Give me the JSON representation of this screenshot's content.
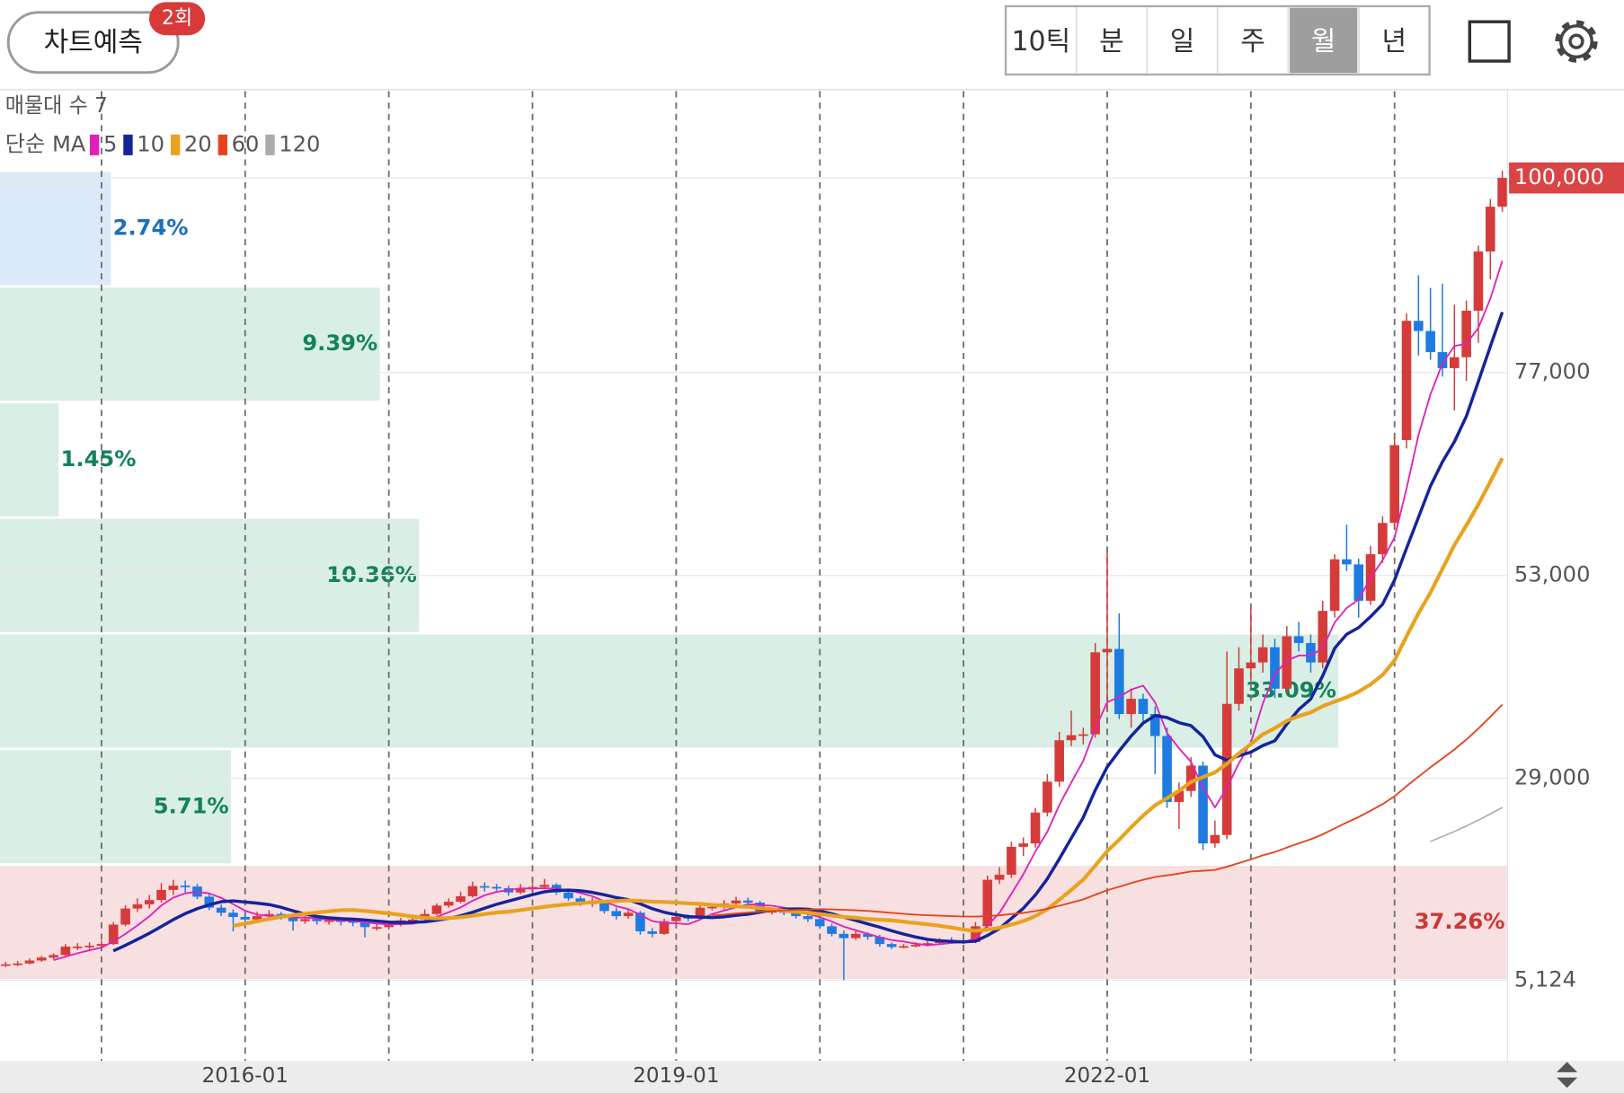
{
  "toolbar": {
    "predict_button": "차트예측",
    "badge": "2회",
    "periods": [
      "10틱",
      "분",
      "일",
      "주",
      "월",
      "년"
    ],
    "selected_period": 4
  },
  "chart_data": {
    "type": "candlestick",
    "categories": [
      "2014-05",
      "2014-06",
      "2014-07",
      "2014-08",
      "2014-09",
      "2014-10",
      "2014-11",
      "2014-12",
      "2015-01",
      "2015-02",
      "2015-03",
      "2015-04",
      "2015-05",
      "2015-06",
      "2015-07",
      "2015-08",
      "2015-09",
      "2015-10",
      "2015-11",
      "2015-12",
      "2016-01",
      "2016-02",
      "2016-03",
      "2016-04",
      "2016-05",
      "2016-06",
      "2016-07",
      "2016-08",
      "2016-09",
      "2016-10",
      "2016-11",
      "2016-12",
      "2017-01",
      "2017-02",
      "2017-03",
      "2017-04",
      "2017-05",
      "2017-06",
      "2017-07",
      "2017-08",
      "2017-09",
      "2017-10",
      "2017-11",
      "2017-12",
      "2018-01",
      "2018-02",
      "2018-03",
      "2018-04",
      "2018-05",
      "2018-06",
      "2018-07",
      "2018-08",
      "2018-09",
      "2018-10",
      "2018-11",
      "2018-12",
      "2019-01",
      "2019-02",
      "2019-03",
      "2019-04",
      "2019-05",
      "2019-06",
      "2019-07",
      "2019-08",
      "2019-09",
      "2019-10",
      "2019-11",
      "2019-12",
      "2020-01",
      "2020-02",
      "2020-03",
      "2020-04",
      "2020-05",
      "2020-06",
      "2020-07",
      "2020-08",
      "2020-09",
      "2020-10",
      "2020-11",
      "2020-12",
      "2021-01",
      "2021-02",
      "2021-03",
      "2021-04",
      "2021-05",
      "2021-06",
      "2021-07",
      "2021-08",
      "2021-09",
      "2021-10",
      "2021-11",
      "2021-12",
      "2022-01",
      "2022-02",
      "2022-03",
      "2022-04",
      "2022-05",
      "2022-06",
      "2022-07",
      "2022-08",
      "2022-09",
      "2022-10",
      "2022-11",
      "2022-12",
      "2023-01",
      "2023-02",
      "2023-03",
      "2023-04",
      "2023-05",
      "2023-06",
      "2023-07",
      "2023-08",
      "2023-09",
      "2023-10",
      "2023-11",
      "2023-12",
      "2024-01",
      "2024-02",
      "2024-03",
      "2024-04",
      "2024-05",
      "2024-06",
      "2024-07",
      "2024-08",
      "2024-09",
      "2024-10"
    ],
    "open": [
      6900,
      7000,
      7100,
      7450,
      7800,
      8100,
      9100,
      9100,
      9200,
      9400,
      11700,
      13600,
      14100,
      14600,
      15800,
      16300,
      16200,
      15000,
      13700,
      13100,
      12600,
      12300,
      12700,
      12950,
      12600,
      12100,
      12350,
      12100,
      12200,
      12100,
      12000,
      11400,
      11400,
      11700,
      12200,
      12300,
      12950,
      13950,
      14400,
      15050,
      16250,
      16150,
      16000,
      15500,
      16000,
      16150,
      16400,
      15500,
      14800,
      14300,
      14300,
      13300,
      12700,
      13100,
      10900,
      10600,
      12100,
      12600,
      12500,
      13700,
      13800,
      14200,
      14550,
      14300,
      13300,
      13300,
      13100,
      12700,
      12350,
      11500,
      10600,
      10100,
      10600,
      10250,
      9400,
      9050,
      9150,
      9300,
      9500,
      9900,
      9750,
      9650,
      11500,
      17000,
      17600,
      20900,
      21300,
      24950,
      28600,
      33500,
      34100,
      34200,
      43900,
      44300,
      36600,
      38400,
      36600,
      34000,
      26200,
      27500,
      30500,
      21300,
      22300,
      37800,
      42000,
      42700,
      44500,
      39600,
      45800,
      45000,
      42700,
      48800,
      54900,
      54300,
      50000,
      55500,
      59200,
      69000,
      83100,
      81900,
      79400,
      77500,
      78800,
      84300,
      91300,
      96600
    ],
    "high": [
      7300,
      7400,
      7700,
      8000,
      8300,
      9400,
      9500,
      9600,
      9800,
      12000,
      14000,
      14800,
      15200,
      16600,
      17000,
      16900,
      16500,
      15300,
      14100,
      13500,
      13100,
      13200,
      13400,
      13200,
      12900,
      12700,
      12600,
      12500,
      12400,
      12300,
      12200,
      11900,
      12000,
      12500,
      12800,
      13500,
      14200,
      14800,
      15600,
      16800,
      16700,
      16500,
      16300,
      16500,
      16600,
      17100,
      16600,
      15800,
      15100,
      14900,
      14500,
      13700,
      13500,
      13300,
      11300,
      12400,
      12900,
      12900,
      14000,
      14200,
      14600,
      15000,
      14900,
      14500,
      13700,
      13600,
      13400,
      13000,
      12600,
      11800,
      11000,
      10900,
      10800,
      10500,
      9600,
      9400,
      9600,
      9800,
      10100,
      10200,
      10000,
      12000,
      17500,
      18500,
      21500,
      22000,
      25500,
      29500,
      34500,
      37000,
      35000,
      45000,
      55900,
      48500,
      39600,
      39000,
      37500,
      35000,
      28500,
      31500,
      31000,
      24000,
      44000,
      44500,
      49000,
      46000,
      45500,
      47000,
      47500,
      46000,
      50000,
      55500,
      59000,
      55000,
      56500,
      60000,
      69500,
      84000,
      88500,
      87000,
      87500,
      85000,
      85500,
      92000,
      97500,
      100850
    ],
    "low": [
      6700,
      6800,
      7000,
      7300,
      7600,
      8000,
      8700,
      8800,
      9000,
      9300,
      11500,
      13200,
      13600,
      14300,
      15200,
      15500,
      14700,
      13400,
      12700,
      10900,
      11800,
      12000,
      12400,
      12300,
      11000,
      11800,
      11700,
      11700,
      11600,
      11500,
      10200,
      11000,
      11100,
      11500,
      12000,
      12100,
      12800,
      13700,
      14200,
      14900,
      15600,
      15700,
      15100,
      15300,
      15700,
      15900,
      15200,
      14500,
      13900,
      13800,
      13000,
      12300,
      12400,
      10500,
      10200,
      10500,
      11800,
      12100,
      12300,
      13400,
      13500,
      13900,
      13900,
      13000,
      12900,
      12800,
      12400,
      12000,
      11200,
      10300,
      5124,
      9900,
      9900,
      9100,
      8800,
      8900,
      9000,
      9100,
      9300,
      9500,
      9400,
      9500,
      11300,
      16500,
      17200,
      19800,
      20800,
      24500,
      28000,
      32800,
      33000,
      33800,
      37000,
      36000,
      35000,
      35500,
      29500,
      25500,
      23000,
      26800,
      20500,
      20800,
      21800,
      37000,
      40500,
      41500,
      38500,
      39000,
      44000,
      41500,
      42000,
      48000,
      53500,
      48000,
      49500,
      54500,
      58500,
      68000,
      79000,
      78500,
      76500,
      72500,
      76000,
      80500,
      88000,
      96000
    ],
    "close": [
      7000,
      7100,
      7450,
      7800,
      8100,
      9100,
      9100,
      9200,
      9400,
      11700,
      13600,
      14100,
      14600,
      15800,
      16300,
      16200,
      15000,
      13700,
      13100,
      12600,
      12300,
      12700,
      12950,
      12600,
      12100,
      12350,
      12100,
      12200,
      12100,
      12000,
      11400,
      11400,
      11700,
      12200,
      12300,
      12950,
      13950,
      14400,
      15050,
      16250,
      16150,
      16000,
      15500,
      16000,
      16150,
      16400,
      15500,
      14800,
      14300,
      14300,
      13300,
      12700,
      13100,
      10900,
      10600,
      12100,
      12600,
      12500,
      13700,
      13800,
      14200,
      14550,
      14300,
      13300,
      13300,
      13100,
      12700,
      12350,
      11500,
      10600,
      10100,
      10600,
      10250,
      9400,
      9050,
      9150,
      9300,
      9500,
      9900,
      9750,
      9650,
      11500,
      17000,
      17600,
      20900,
      21300,
      24950,
      28600,
      33500,
      34100,
      34200,
      43900,
      44300,
      36600,
      38400,
      36600,
      34000,
      26200,
      27500,
      30500,
      21300,
      22300,
      37800,
      42000,
      42700,
      44500,
      39600,
      45800,
      45000,
      42700,
      48800,
      54900,
      54300,
      50000,
      55500,
      59200,
      68400,
      83100,
      81900,
      79400,
      77500,
      78800,
      84300,
      91300,
      96600,
      100000
    ],
    "up_color": "#d63b3b",
    "down_color": "#1f7be0",
    "ylim": [
      -4420,
      110270
    ],
    "yticks": [
      {
        "value": 100000,
        "label": "100,000"
      },
      {
        "value": 77000,
        "label": "77,000"
      },
      {
        "value": 53000,
        "label": "53,000"
      },
      {
        "value": 29000,
        "label": "29,000"
      },
      {
        "value": 5124,
        "label": "5,124"
      }
    ],
    "xticks": [
      "2016-01",
      "2019-01",
      "2022-01"
    ],
    "grid_x": [
      "2015-01",
      "2016-01",
      "2017-01",
      "2018-01",
      "2019-01",
      "2020-01",
      "2021-01",
      "2022-01",
      "2023-01",
      "2024-01"
    ],
    "grid": true,
    "price_tag": {
      "value": 100000,
      "label": "100,000",
      "color": "#d94545"
    },
    "ma": {
      "label": "단순 MA",
      "periods": [
        5,
        10,
        20,
        60,
        120
      ],
      "colors": [
        "#dd22bb",
        "#14249a",
        "#e8a21e",
        "#e6431c",
        "#ababab"
      ]
    },
    "profile": {
      "label": "매물대 수 7",
      "values": [
        2.74,
        9.39,
        1.45,
        10.36,
        33.09,
        5.71,
        37.26
      ],
      "value_labels": [
        "2.74%",
        "9.39%",
        "1.45%",
        "10.36%",
        "33.09%",
        "5.71%",
        "37.26%"
      ],
      "colors": [
        "#dbe9f8",
        "#d9eee5",
        "#d9eee5",
        "#d9eee5",
        "#d9eee5",
        "#d9eee5",
        "#f8dfe0"
      ],
      "label_colors": [
        "#1c6fb8",
        "#13825a",
        "#13825a",
        "#13825a",
        "#13825a",
        "#13825a",
        "#c83838"
      ]
    }
  }
}
